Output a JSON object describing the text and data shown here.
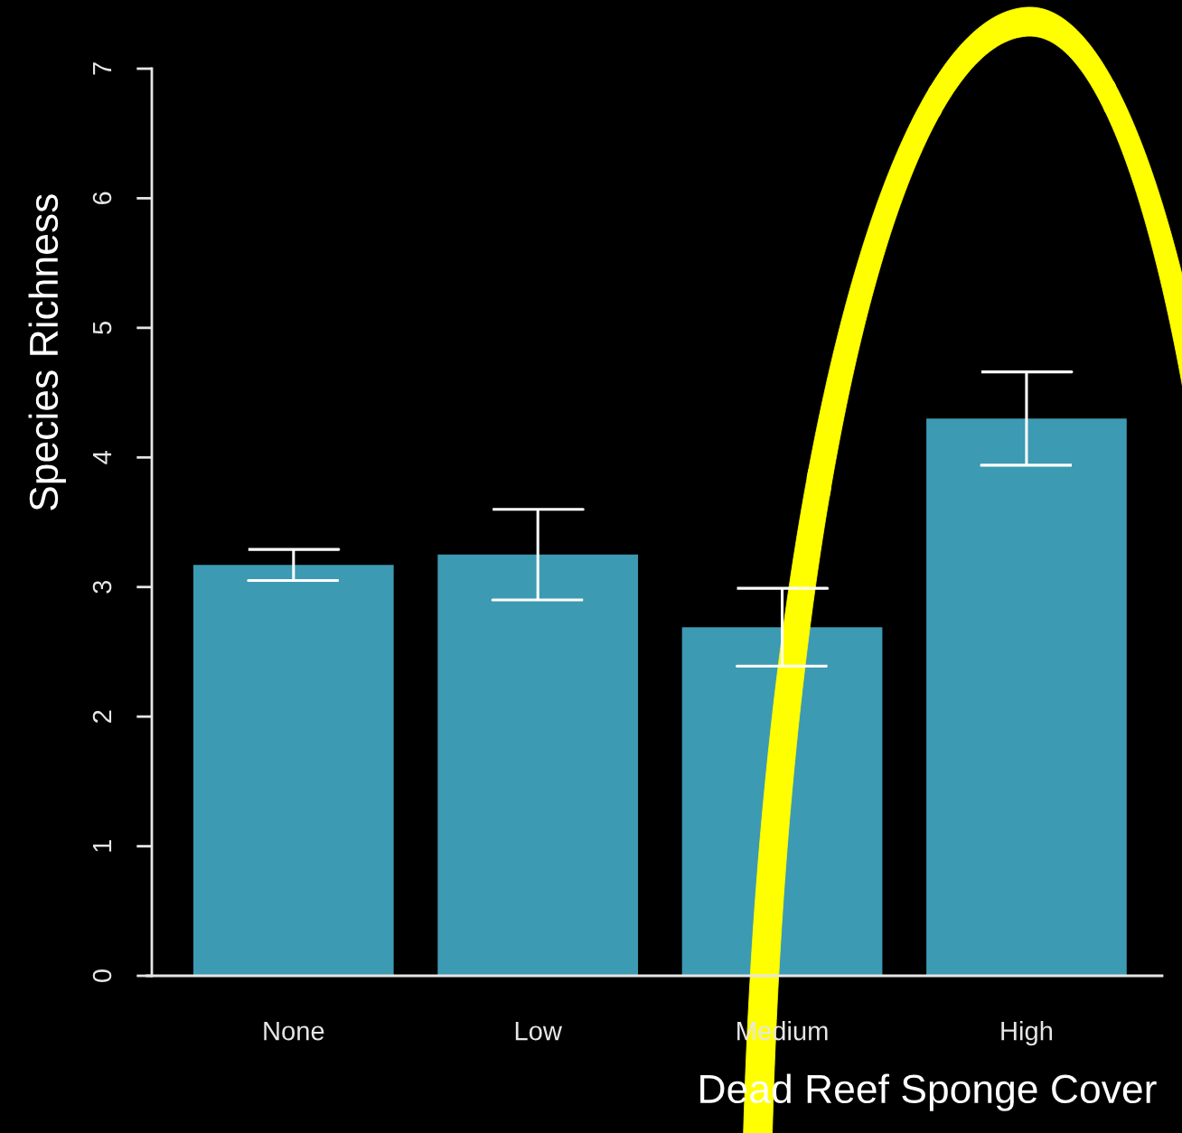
{
  "chart_data": {
    "type": "bar",
    "xlabel": "Dead Reef Sponge Cover",
    "ylabel": "Species Richness",
    "categories": [
      "None",
      "Low",
      "Medium",
      "High"
    ],
    "values": [
      3.17,
      3.25,
      2.69,
      4.3
    ],
    "errors": [
      0.12,
      0.35,
      0.3,
      0.36
    ],
    "color": "#3c9ab2",
    "ylim": [
      0,
      7
    ],
    "yticks": [
      0,
      1,
      2,
      3,
      4,
      5,
      6,
      7
    ]
  }
}
